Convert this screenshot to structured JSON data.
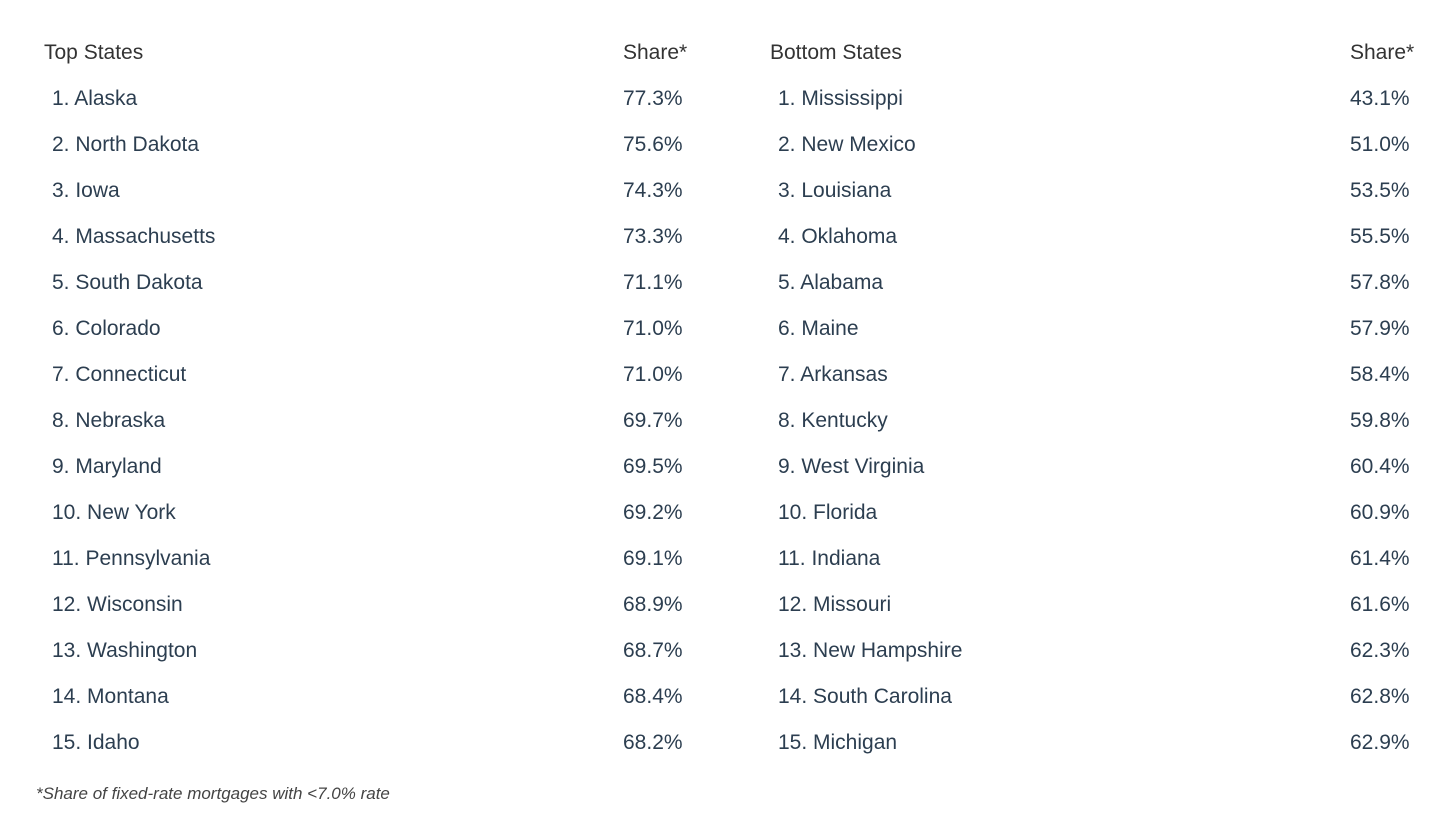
{
  "tables": [
    {
      "header": [
        "Top States",
        "Share*"
      ],
      "rows": [
        [
          "1. Alaska",
          "77.3%"
        ],
        [
          "2. North Dakota",
          "75.6%"
        ],
        [
          "3. Iowa",
          "74.3%"
        ],
        [
          "4. Massachusetts",
          "73.3%"
        ],
        [
          "5. South Dakota",
          "71.1%"
        ],
        [
          "6. Colorado",
          "71.0%"
        ],
        [
          "7. Connecticut",
          "71.0%"
        ],
        [
          "8. Nebraska",
          "69.7%"
        ],
        [
          "9. Maryland",
          "69.5%"
        ],
        [
          "10. New York",
          "69.2%"
        ],
        [
          "11. Pennsylvania",
          "69.1%"
        ],
        [
          "12. Wisconsin",
          "68.9%"
        ],
        [
          "13. Washington",
          "68.7%"
        ],
        [
          "14. Montana",
          "68.4%"
        ],
        [
          "15. Idaho",
          "68.2%"
        ]
      ]
    },
    {
      "header": [
        "Bottom States",
        "Share*"
      ],
      "rows": [
        [
          "1. Mississippi",
          "43.1%"
        ],
        [
          "2. New Mexico",
          "51.0%"
        ],
        [
          "3. Louisiana",
          "53.5%"
        ],
        [
          "4. Oklahoma",
          "55.5%"
        ],
        [
          "5. Alabama",
          "57.8%"
        ],
        [
          "6. Maine",
          "57.9%"
        ],
        [
          "7. Arkansas",
          "58.4%"
        ],
        [
          "8. Kentucky",
          "59.8%"
        ],
        [
          "9. West Virginia",
          "60.4%"
        ],
        [
          "10. Florida",
          "60.9%"
        ],
        [
          "11. Indiana",
          "61.4%"
        ],
        [
          "12. Missouri",
          "61.6%"
        ],
        [
          "13. New Hampshire",
          "62.3%"
        ],
        [
          "14. South Carolina",
          "62.8%"
        ],
        [
          "15. Michigan",
          "62.9%"
        ]
      ]
    }
  ],
  "footnote": "*Share of fixed-rate mortgages with <7.0% rate"
}
